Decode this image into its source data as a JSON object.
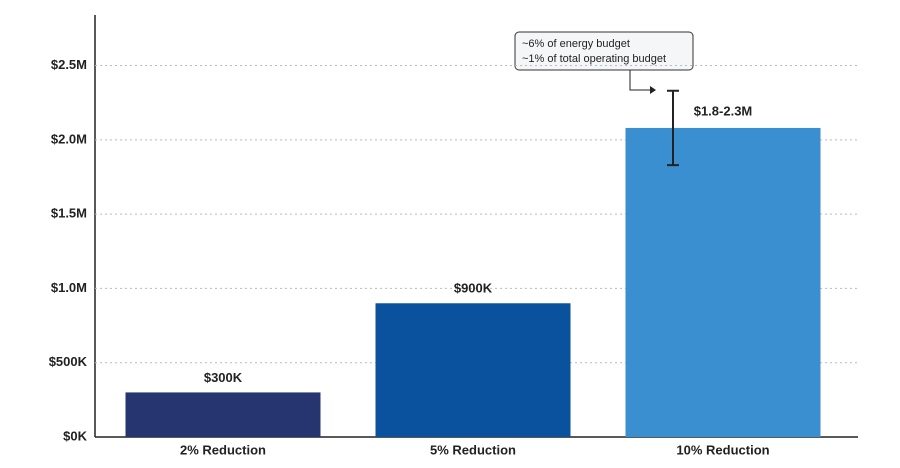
{
  "chart_data": {
    "type": "bar",
    "categories": [
      "2% Reduction",
      "5% Reduction",
      "10% Reduction"
    ],
    "values": [
      300000,
      900000,
      2080000
    ],
    "value_labels": [
      "$300K",
      "$900K",
      "$1.8-2.3M"
    ],
    "errors": [
      null,
      null,
      250000
    ],
    "colors": [
      "#26346f",
      "#0b529e",
      "#3a8fd1"
    ],
    "ylim": [
      0,
      2840000
    ],
    "yticks": [
      {
        "value": 0,
        "label": "$0K"
      },
      {
        "value": 500000,
        "label": "$500K"
      },
      {
        "value": 1000000,
        "label": "$1.0M"
      },
      {
        "value": 1500000,
        "label": "$1.5M"
      },
      {
        "value": 2000000,
        "label": "$2.0M"
      },
      {
        "value": 2500000,
        "label": "$2.5M"
      }
    ],
    "grid": true,
    "annotation": [
      "~6% of energy budget",
      "~1% of total operating budget"
    ]
  }
}
